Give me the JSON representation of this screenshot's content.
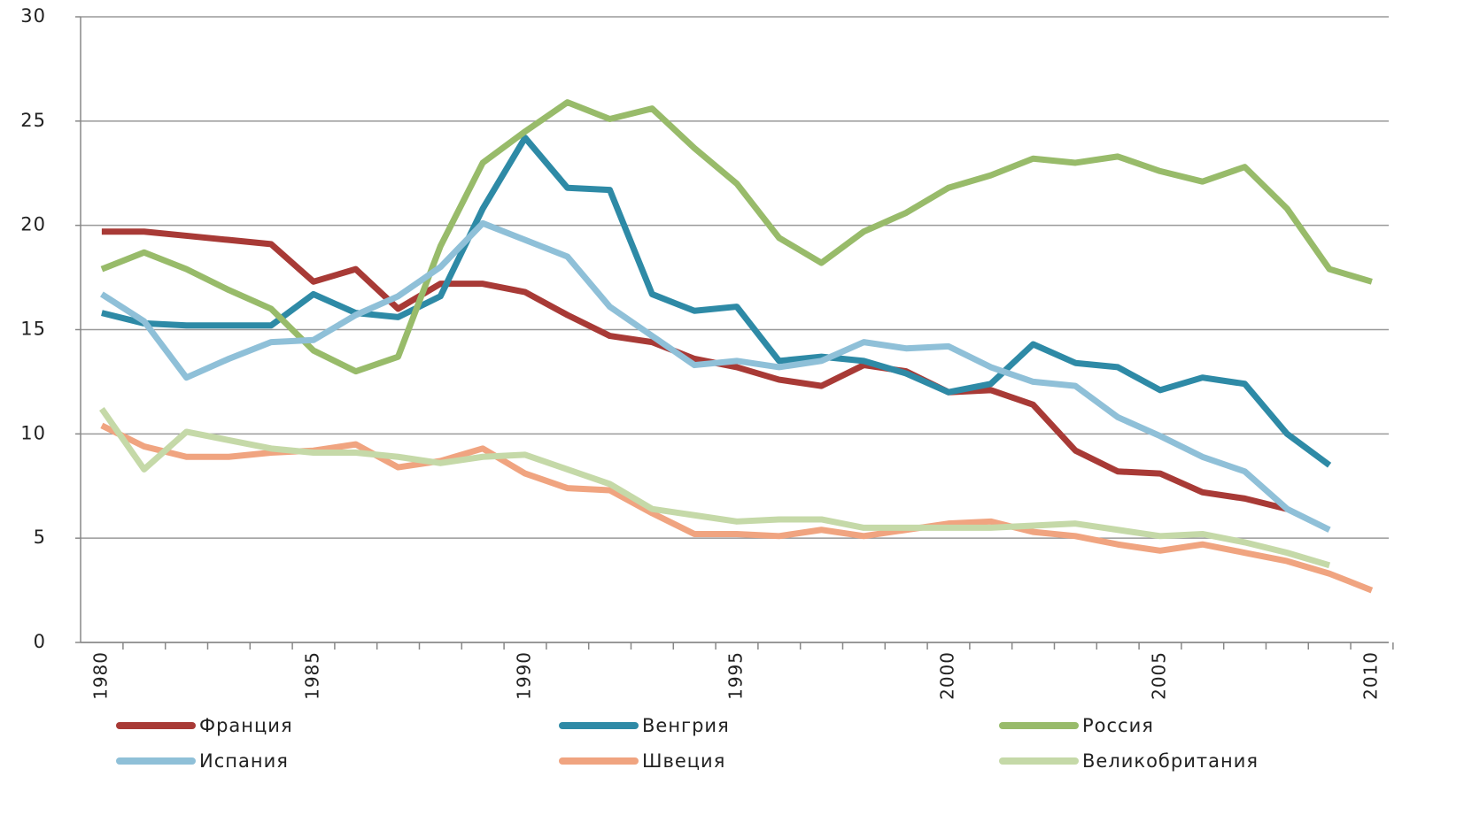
{
  "chart_data": {
    "type": "line",
    "x": [
      1980,
      1981,
      1982,
      1983,
      1984,
      1985,
      1986,
      1987,
      1988,
      1989,
      1990,
      1991,
      1992,
      1993,
      1994,
      1995,
      1996,
      1997,
      1998,
      1999,
      2000,
      2001,
      2002,
      2003,
      2004,
      2005,
      2006,
      2007,
      2008,
      2009,
      2010
    ],
    "xlim": [
      1979.5,
      2010.4
    ],
    "xticks": [
      1980,
      1985,
      1990,
      1995,
      2000,
      2005,
      2010
    ],
    "ylim": [
      0,
      30
    ],
    "yticks": [
      0,
      5,
      10,
      15,
      20,
      25,
      30
    ],
    "grid": true,
    "legend": "bottom",
    "series": [
      {
        "name": "Франция",
        "color": "#a83a36",
        "values": [
          19.7,
          19.7,
          19.5,
          19.3,
          19.1,
          17.3,
          17.9,
          16.0,
          17.2,
          17.2,
          16.8,
          15.7,
          14.7,
          14.4,
          13.6,
          13.2,
          12.6,
          12.3,
          13.3,
          13.0,
          12.0,
          12.1,
          11.4,
          9.2,
          8.2,
          8.1,
          7.2,
          6.9,
          6.4,
          null,
          null
        ]
      },
      {
        "name": "Венгрия",
        "color": "#2e8aa6",
        "values": [
          15.8,
          15.3,
          15.2,
          15.2,
          15.2,
          16.7,
          15.8,
          15.6,
          16.6,
          20.8,
          24.2,
          21.8,
          21.7,
          16.7,
          15.9,
          16.1,
          13.5,
          13.7,
          13.5,
          12.9,
          12.0,
          12.4,
          14.3,
          13.4,
          13.2,
          12.1,
          12.7,
          12.4,
          10.0,
          8.5,
          null
        ]
      },
      {
        "name": "Россия",
        "color": "#98bb6a",
        "values": [
          17.9,
          18.7,
          17.9,
          16.9,
          16.0,
          14.0,
          13.0,
          13.7,
          19.0,
          23.0,
          24.5,
          25.9,
          25.1,
          25.6,
          23.7,
          22.0,
          19.4,
          18.2,
          19.7,
          20.6,
          21.8,
          22.4,
          23.2,
          23.0,
          23.3,
          22.6,
          22.1,
          22.8,
          20.8,
          17.9,
          17.3
        ]
      },
      {
        "name": "Испания",
        "color": "#8fc0d8",
        "values": [
          16.7,
          15.4,
          12.7,
          13.6,
          14.4,
          14.5,
          15.7,
          16.6,
          18.0,
          20.1,
          19.3,
          18.5,
          16.1,
          14.7,
          13.3,
          13.5,
          13.2,
          13.5,
          14.4,
          14.1,
          14.2,
          13.2,
          12.5,
          12.3,
          10.8,
          9.9,
          8.9,
          8.2,
          6.4,
          5.4,
          null
        ]
      },
      {
        "name": "Швеция",
        "color": "#f0a480",
        "values": [
          10.4,
          9.4,
          8.9,
          8.9,
          9.1,
          9.2,
          9.5,
          8.4,
          8.7,
          9.3,
          8.1,
          7.4,
          7.3,
          6.2,
          5.2,
          5.2,
          5.1,
          5.4,
          5.1,
          5.4,
          5.7,
          5.8,
          5.3,
          5.1,
          4.7,
          4.4,
          4.7,
          4.3,
          3.9,
          3.3,
          2.5
        ]
      },
      {
        "name": "Великобритания",
        "color": "#c5d9a8",
        "values": [
          11.2,
          8.3,
          10.1,
          9.7,
          9.3,
          9.1,
          9.1,
          8.9,
          8.6,
          8.9,
          9.0,
          8.3,
          7.6,
          6.4,
          6.1,
          5.8,
          5.9,
          5.9,
          5.5,
          5.5,
          5.5,
          5.5,
          5.6,
          5.7,
          5.4,
          5.1,
          5.2,
          4.8,
          4.3,
          3.7,
          null
        ]
      }
    ]
  }
}
